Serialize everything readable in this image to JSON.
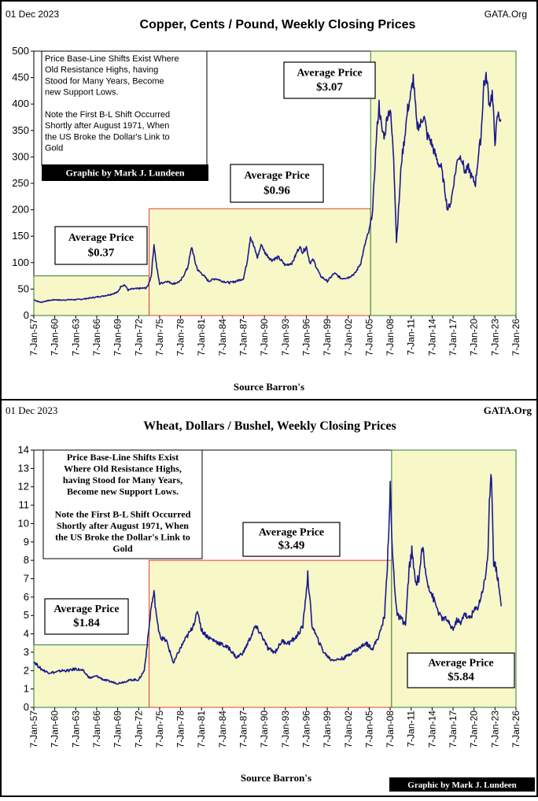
{
  "charts": [
    {
      "id": "copper",
      "date": "01 Dec 2023",
      "site": "GATA.Org",
      "title": "Copper, Cents / Pound, Weekly Closing Prices",
      "source": "Source Barron's",
      "note": [
        "Price Base-Line Shifts Exist Where",
        "Old Resistance Highs,  having",
        "Stood for Many Years, Become",
        "new Support Lows.",
        "",
        "Note the First B-L Shift Occurred",
        "Shortly after August 1971, When",
        "the US Broke the Dollar's Link to",
        "Gold"
      ],
      "credit": "Graphic by Mark J. Lundeen",
      "averages": [
        {
          "title": "Average Price",
          "value": "$0.37"
        },
        {
          "title": "Average Price",
          "value": "$0.96"
        },
        {
          "title": "Average Price",
          "value": "$3.07"
        }
      ]
    },
    {
      "id": "wheat",
      "date": "01 Dec 2023",
      "site": "GATA.Org",
      "title": "Wheat, Dollars / Bushel, Weekly Closing Prices",
      "source": "Source Barron's",
      "note": [
        "Price Base-Line Shifts Exist",
        "Where Old Resistance Highs,",
        "having Stood for Many Years,",
        "Become new Support Lows.",
        "",
        "Note the First B-L Shift Occurred",
        "Shortly after August 1971, When",
        "the US Broke the Dollar's Link to",
        "Gold"
      ],
      "credit": "Graphic by Mark J. Lundeen",
      "averages": [
        {
          "title": "Average Price",
          "value": "$1.84"
        },
        {
          "title": "Average Price",
          "value": "$3.49"
        },
        {
          "title": "Average Price",
          "value": "$5.84"
        }
      ]
    }
  ],
  "chart_data": [
    {
      "type": "line",
      "title": "Copper, Cents / Pound, Weekly Closing Prices",
      "xlabel": "Source Barron's",
      "ylabel": "",
      "ylim": [
        0,
        500
      ],
      "yticks": [
        0,
        50,
        100,
        150,
        200,
        250,
        300,
        350,
        400,
        450,
        500
      ],
      "xlim": [
        1957.0,
        2026.0
      ],
      "xticks": [
        "7-Jan-57",
        "7-Jan-60",
        "7-Jan-63",
        "7-Jan-66",
        "7-Jan-69",
        "7-Jan-72",
        "7-Jan-75",
        "7-Jan-78",
        "7-Jan-81",
        "7-Jan-84",
        "7-Jan-87",
        "7-Jan-90",
        "7-Jan-93",
        "7-Jan-96",
        "7-Jan-99",
        "7-Jan-02",
        "7-Jan-05",
        "7-Jan-08",
        "7-Jan-11",
        "7-Jan-14",
        "7-Jan-17",
        "7-Jan-20",
        "7-Jan-23",
        "7-Jan-26"
      ],
      "regions": [
        {
          "from": 1957.0,
          "to": 1973.5,
          "level": 75,
          "color": "#2e7d32"
        },
        {
          "from": 1973.5,
          "to": 2005.2,
          "level": 202,
          "color": "#e53935"
        },
        {
          "from": 2005.2,
          "to": 2026.0,
          "level": 500,
          "color": "#2e7d32"
        }
      ],
      "series": [
        {
          "name": "Copper",
          "x": [
            1957,
            1957.5,
            1958,
            1959,
            1960,
            1961,
            1962,
            1963,
            1964,
            1965,
            1966,
            1967,
            1968,
            1969,
            1969.5,
            1970,
            1970.5,
            1971,
            1972,
            1973,
            1973.3,
            1973.8,
            1974.2,
            1974.6,
            1975,
            1976,
            1977,
            1978,
            1979,
            1979.6,
            1980.1,
            1980.5,
            1981,
            1982,
            1983,
            1984,
            1985,
            1986,
            1987,
            1987.5,
            1988,
            1988.5,
            1989,
            1989.6,
            1990,
            1991,
            1992,
            1993,
            1994,
            1995,
            1995.5,
            1996,
            1996.5,
            1997,
            1998,
            1999,
            2000,
            2001,
            2002,
            2003,
            2003.8,
            2004.5,
            2005,
            2005.5,
            2006,
            2006.4,
            2006.8,
            2007.2,
            2007.6,
            2008,
            2008.5,
            2008.9,
            2009.2,
            2009.6,
            2010,
            2010.5,
            2011,
            2011.3,
            2011.8,
            2012.3,
            2012.8,
            2013.3,
            2013.8,
            2014.3,
            2014.8,
            2015.3,
            2015.8,
            2016.2,
            2016.7,
            2017.2,
            2017.7,
            2018.2,
            2018.7,
            2019.2,
            2019.7,
            2020.2,
            2020.6,
            2021.0,
            2021.4,
            2021.8,
            2022.2,
            2022.6,
            2023.0,
            2023.4,
            2023.9
          ],
          "values": [
            30,
            27,
            25,
            28,
            30,
            29,
            30,
            30,
            31,
            33,
            35,
            37,
            40,
            44,
            56,
            58,
            48,
            50,
            51,
            52,
            55,
            75,
            135,
            90,
            60,
            65,
            60,
            65,
            90,
            130,
            100,
            85,
            80,
            65,
            70,
            65,
            62,
            65,
            70,
            100,
            150,
            130,
            110,
            135,
            120,
            105,
            110,
            95,
            100,
            130,
            120,
            130,
            100,
            105,
            75,
            65,
            80,
            70,
            72,
            80,
            100,
            140,
            160,
            200,
            330,
            400,
            350,
            340,
            380,
            390,
            300,
            140,
            200,
            290,
            330,
            390,
            420,
            450,
            360,
            360,
            380,
            340,
            330,
            310,
            290,
            280,
            240,
            200,
            215,
            260,
            300,
            300,
            270,
            280,
            260,
            250,
            300,
            340,
            440,
            450,
            400,
            420,
            330,
            380,
            370
          ]
        }
      ]
    },
    {
      "type": "line",
      "title": "Wheat, Dollars / Bushel, Weekly Closing Prices",
      "xlabel": "Source Barron's",
      "ylabel": "",
      "ylim": [
        0,
        14
      ],
      "yticks": [
        0,
        1,
        2,
        3,
        4,
        5,
        6,
        7,
        8,
        9,
        10,
        11,
        12,
        13,
        14
      ],
      "xlim": [
        1957.0,
        2026.0
      ],
      "xticks": [
        "7-Jan-57",
        "7-Jan-60",
        "7-Jan-63",
        "7-Jan-66",
        "7-Jan-69",
        "7-Jan-72",
        "7-Jan-75",
        "7-Jan-78",
        "7-Jan-81",
        "7-Jan-84",
        "7-Jan-87",
        "7-Jan-90",
        "7-Jan-93",
        "7-Jan-96",
        "7-Jan-99",
        "7-Jan-02",
        "7-Jan-05",
        "7-Jan-08",
        "7-Jan-11",
        "7-Jan-14",
        "7-Jan-17",
        "7-Jan-20",
        "7-Jan-23",
        "7-Jan-26"
      ],
      "regions": [
        {
          "from": 1957.0,
          "to": 1973.5,
          "level": 3.4,
          "color": "#2e7d32"
        },
        {
          "from": 1973.5,
          "to": 2008.2,
          "level": 8.0,
          "color": "#e53935"
        },
        {
          "from": 2008.2,
          "to": 2026.0,
          "level": 14,
          "color": "#2e7d32"
        }
      ],
      "series": [
        {
          "name": "Wheat",
          "x": [
            1957,
            1958,
            1959,
            1960,
            1961,
            1962,
            1963,
            1964,
            1965,
            1966,
            1967,
            1968,
            1969,
            1970,
            1971,
            1972,
            1972.8,
            1973.4,
            1973.8,
            1974.2,
            1974.7,
            1975.2,
            1976,
            1977,
            1977.7,
            1978.5,
            1979.5,
            1980.5,
            1981,
            1982,
            1983,
            1984,
            1985,
            1986,
            1987,
            1988,
            1988.7,
            1989.5,
            1990.5,
            1991.5,
            1992.5,
            1993.5,
            1994.5,
            1995.5,
            1996.2,
            1996.8,
            1997.5,
            1998.5,
            1999.5,
            2000.5,
            2001.5,
            2002.5,
            2003.5,
            2004.5,
            2005.5,
            2006.5,
            2007.2,
            2007.6,
            2008.0,
            2008.3,
            2008.6,
            2009.0,
            2009.6,
            2010.2,
            2010.7,
            2011.1,
            2011.6,
            2012.1,
            2012.6,
            2013.1,
            2013.6,
            2014.1,
            2014.6,
            2015.1,
            2015.6,
            2016.1,
            2016.6,
            2017.1,
            2017.6,
            2018.1,
            2018.6,
            2019.1,
            2019.6,
            2020.1,
            2020.6,
            2021.1,
            2021.6,
            2022.0,
            2022.2,
            2022.5,
            2022.8,
            2023.2,
            2023.6,
            2023.9
          ],
          "values": [
            2.5,
            2.1,
            1.9,
            1.9,
            2.0,
            2.0,
            2.1,
            2.0,
            1.6,
            1.7,
            1.5,
            1.4,
            1.3,
            1.4,
            1.5,
            1.5,
            2.0,
            4.0,
            5.5,
            6.2,
            4.5,
            3.8,
            3.6,
            2.4,
            3.0,
            3.6,
            4.2,
            5.2,
            4.2,
            3.8,
            3.6,
            3.4,
            3.2,
            2.7,
            3.0,
            3.8,
            4.4,
            4.0,
            3.2,
            3.0,
            3.6,
            3.5,
            3.8,
            4.4,
            7.2,
            4.5,
            3.8,
            3.0,
            2.6,
            2.6,
            2.7,
            3.0,
            3.2,
            3.5,
            3.2,
            4.0,
            5.0,
            7.8,
            11.9,
            8.5,
            6.8,
            5.0,
            4.8,
            4.5,
            7.5,
            8.5,
            6.8,
            7.0,
            8.8,
            7.2,
            6.5,
            6.0,
            5.5,
            5.0,
            4.8,
            4.8,
            4.4,
            4.3,
            4.8,
            4.5,
            5.2,
            4.8,
            5.0,
            5.3,
            5.5,
            6.2,
            7.0,
            8.5,
            11.0,
            12.8,
            8.0,
            7.5,
            6.5,
            5.5
          ]
        }
      ]
    }
  ]
}
